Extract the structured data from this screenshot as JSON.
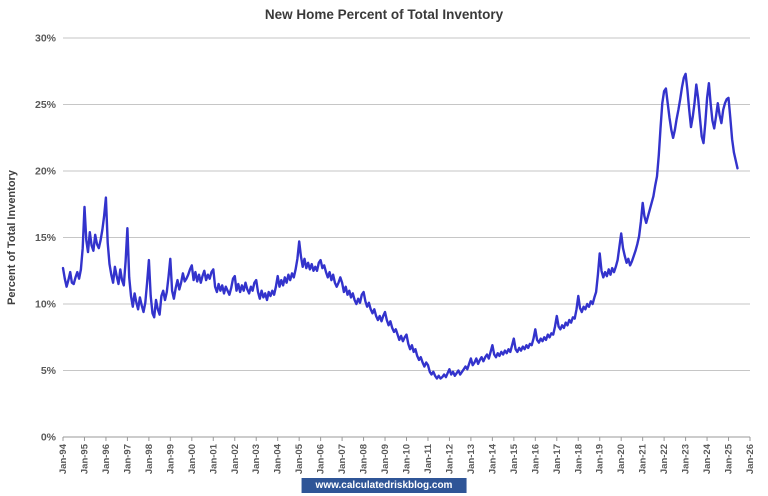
{
  "title": "New Home Percent of Total Inventory",
  "watermark": {
    "text": "www.calculatedriskblog.com",
    "bg": "#2f5597",
    "fg": "#ffffff"
  },
  "chart_data": {
    "type": "line",
    "title": "New Home Percent of Total Inventory",
    "xlabel": "",
    "ylabel": "Percent of Total Inventory",
    "ylim": [
      0,
      30
    ],
    "y_tick_step": 5,
    "y_ticks": [
      "0%",
      "5%",
      "10%",
      "15%",
      "20%",
      "25%",
      "30%"
    ],
    "x_tick_labels": [
      "Jan-94",
      "Jan-95",
      "Jan-96",
      "Jan-97",
      "Jan-98",
      "Jan-99",
      "Jan-00",
      "Jan-01",
      "Jan-02",
      "Jan-03",
      "Jan-04",
      "Jan-05",
      "Jan-06",
      "Jan-07",
      "Jan-08",
      "Jan-09",
      "Jan-10",
      "Jan-11",
      "Jan-12",
      "Jan-13",
      "Jan-14",
      "Jan-15",
      "Jan-16",
      "Jan-17",
      "Jan-18",
      "Jan-19",
      "Jan-20",
      "Jan-21",
      "Jan-22",
      "Jan-23",
      "Jan-24",
      "Jan-25",
      "Jan-26"
    ],
    "grid": true,
    "grid_color": "#c6c6c6",
    "line_color": "#3333cc",
    "legend": null,
    "frequency": "monthly",
    "x_start": "Jan-1994",
    "x_end": "Jun-2025",
    "values": [
      12.7,
      11.9,
      11.3,
      11.8,
      12.4,
      11.6,
      11.5,
      12.0,
      12.4,
      11.9,
      12.6,
      14.2,
      17.3,
      14.8,
      13.9,
      15.4,
      14.4,
      14.0,
      15.2,
      14.5,
      14.2,
      14.8,
      15.6,
      16.6,
      18.0,
      14.6,
      13.0,
      12.2,
      11.6,
      12.8,
      12.1,
      11.5,
      12.6,
      11.8,
      11.4,
      13.2,
      15.7,
      12.0,
      10.6,
      9.8,
      10.8,
      10.1,
      9.6,
      10.5,
      9.9,
      9.4,
      10.1,
      11.6,
      13.3,
      10.6,
      9.3,
      9.0,
      10.3,
      9.6,
      9.2,
      10.6,
      11.0,
      10.3,
      10.9,
      12.1,
      13.4,
      11.0,
      10.4,
      11.2,
      11.8,
      11.1,
      11.6,
      12.3,
      11.7,
      11.9,
      12.2,
      12.6,
      12.9,
      11.8,
      12.4,
      11.7,
      12.2,
      11.6,
      12.1,
      12.5,
      11.8,
      12.2,
      11.9,
      12.4,
      12.6,
      11.3,
      10.9,
      11.5,
      11.0,
      11.4,
      10.8,
      11.3,
      11.0,
      10.7,
      11.2,
      11.9,
      12.1,
      11.0,
      11.5,
      10.9,
      11.4,
      11.0,
      11.6,
      11.1,
      10.8,
      11.3,
      11.0,
      11.6,
      11.8,
      10.9,
      10.4,
      11.0,
      10.5,
      10.8,
      10.3,
      10.9,
      10.6,
      11.0,
      10.7,
      11.3,
      12.1,
      11.3,
      11.8,
      11.4,
      12.0,
      11.6,
      12.2,
      11.8,
      12.3,
      12.0,
      12.6,
      13.4,
      14.7,
      13.6,
      12.8,
      13.4,
      12.7,
      13.1,
      12.6,
      13.0,
      12.5,
      12.8,
      12.5,
      13.1,
      13.3,
      12.7,
      12.9,
      12.4,
      12.0,
      12.4,
      11.8,
      12.2,
      11.6,
      11.3,
      11.6,
      12.0,
      11.6,
      10.9,
      11.3,
      10.7,
      11.0,
      10.5,
      10.8,
      10.3,
      10.0,
      10.4,
      10.1,
      10.7,
      10.9,
      10.2,
      9.8,
      10.1,
      9.6,
      9.3,
      9.6,
      9.1,
      8.8,
      9.1,
      8.7,
      9.1,
      9.4,
      8.8,
      8.4,
      8.7,
      8.2,
      7.9,
      8.1,
      7.7,
      7.3,
      7.6,
      7.2,
      7.5,
      7.7,
      7.0,
      6.6,
      6.9,
      6.4,
      6.6,
      6.1,
      5.8,
      6.0,
      5.6,
      5.3,
      5.6,
      5.4,
      4.9,
      4.7,
      4.9,
      4.6,
      4.4,
      4.6,
      4.4,
      4.5,
      4.7,
      4.5,
      4.8,
      5.1,
      4.7,
      4.9,
      4.6,
      4.8,
      5.0,
      4.7,
      4.9,
      5.1,
      5.3,
      5.1,
      5.5,
      5.9,
      5.4,
      5.6,
      5.9,
      5.5,
      5.8,
      6.0,
      5.7,
      6.0,
      6.2,
      5.9,
      6.4,
      6.9,
      6.2,
      6.0,
      6.3,
      6.1,
      6.4,
      6.2,
      6.5,
      6.3,
      6.6,
      6.4,
      6.9,
      7.4,
      6.6,
      6.4,
      6.7,
      6.5,
      6.8,
      6.6,
      6.9,
      6.7,
      7.0,
      6.9,
      7.4,
      8.1,
      7.3,
      7.1,
      7.4,
      7.2,
      7.5,
      7.3,
      7.7,
      7.5,
      7.8,
      7.7,
      8.3,
      9.1,
      8.3,
      8.1,
      8.4,
      8.2,
      8.6,
      8.4,
      8.8,
      8.6,
      9.0,
      8.9,
      9.6,
      10.6,
      9.7,
      9.4,
      9.8,
      9.6,
      10.0,
      9.8,
      10.2,
      10.0,
      10.5,
      10.9,
      12.2,
      13.8,
      12.5,
      12.0,
      12.4,
      12.1,
      12.6,
      12.2,
      12.7,
      12.4,
      12.8,
      13.3,
      14.3,
      15.3,
      14.2,
      13.6,
      13.1,
      13.4,
      12.9,
      13.2,
      13.6,
      14.0,
      14.5,
      15.1,
      16.2,
      17.6,
      16.6,
      16.1,
      16.6,
      17.1,
      17.6,
      18.1,
      18.9,
      19.6,
      21.2,
      23.2,
      25.1,
      26.0,
      26.2,
      25.1,
      24.0,
      23.1,
      22.5,
      23.1,
      23.9,
      24.6,
      25.4,
      26.3,
      27.0,
      27.3,
      26.1,
      24.6,
      23.3,
      24.1,
      25.1,
      26.5,
      25.5,
      24.0,
      22.6,
      22.1,
      23.6,
      25.5,
      26.6,
      25.1,
      23.8,
      23.2,
      24.1,
      25.1,
      24.2,
      23.6,
      24.6,
      25.1,
      25.4,
      25.5,
      24.0,
      22.4,
      21.4,
      20.8,
      20.2
    ]
  }
}
